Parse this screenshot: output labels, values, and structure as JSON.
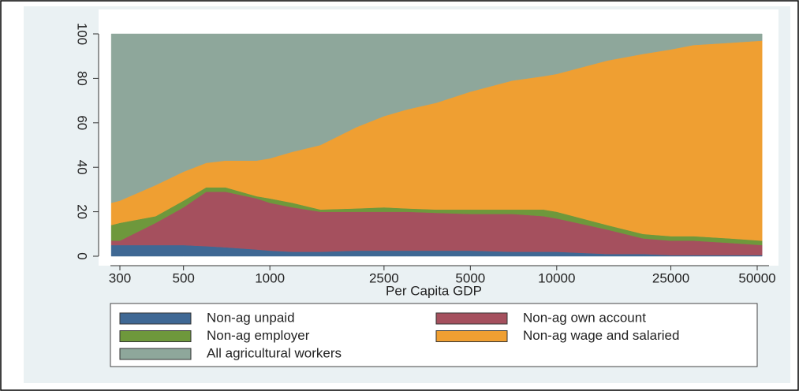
{
  "chart_data": {
    "type": "stacked_area",
    "x_label": "Per Capita GDP",
    "xscale": "log",
    "x": [
      280,
      300,
      400,
      500,
      600,
      700,
      900,
      1000,
      1200,
      1500,
      2000,
      2500,
      3000,
      3800,
      5000,
      7000,
      9000,
      10000,
      15000,
      20000,
      25000,
      30000,
      40000,
      52000
    ],
    "series": [
      {
        "name": "Non-ag unpaid",
        "color": "#3f6894",
        "values": [
          5,
          5,
          5,
          5,
          4.5,
          4,
          3,
          2.5,
          2,
          2,
          2.5,
          2.5,
          2.5,
          2.5,
          2.5,
          2,
          2,
          2,
          1,
          1,
          0.5,
          0.5,
          0.5,
          0.5
        ]
      },
      {
        "name": "Non-ag own account",
        "color": "#a5505e",
        "values": [
          2,
          2,
          10,
          17,
          24.5,
          25,
          23,
          21.5,
          20,
          18,
          17.5,
          17.5,
          17.5,
          17,
          16.5,
          17,
          16,
          15,
          11,
          7,
          6.5,
          6.5,
          5.5,
          4.5
        ]
      },
      {
        "name": "Non-ag employer",
        "color": "#6e983c",
        "values": [
          7,
          8,
          3,
          3,
          2,
          2,
          1,
          2,
          2,
          1,
          1.5,
          2,
          1.5,
          1.5,
          2,
          2,
          3,
          3,
          2,
          2,
          2,
          2,
          2,
          2
        ]
      },
      {
        "name": "Non-ag wage and salaried",
        "color": "#ef9f32",
        "values": [
          10,
          10,
          14,
          13,
          11,
          12,
          16,
          18,
          23,
          29,
          36.5,
          41,
          44.5,
          48,
          53,
          58,
          60,
          62,
          74,
          81,
          84,
          86,
          88,
          90
        ]
      },
      {
        "name": "All agricultural workers",
        "color": "#8ea79b",
        "values": [
          76,
          75,
          68,
          62,
          58,
          57,
          57,
          56,
          53,
          50,
          42,
          37,
          34,
          31,
          26,
          21,
          19,
          18,
          12,
          9,
          7,
          5,
          4,
          3
        ]
      }
    ],
    "xlim": [
      250,
      60000
    ],
    "xticks": [
      300,
      500,
      1000,
      2500,
      5000,
      10000,
      25000,
      50000
    ],
    "ylim": [
      0,
      100
    ],
    "yticks": [
      0,
      20,
      40,
      60,
      80,
      100
    ],
    "grid": false
  }
}
